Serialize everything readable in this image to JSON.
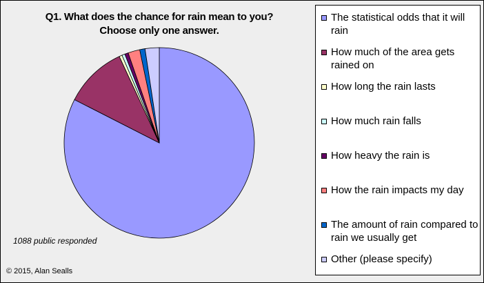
{
  "chart_data": {
    "type": "pie",
    "title": "Q1. What does the chance for rain mean to you?",
    "subtitle": "Choose only one answer.",
    "note": "1088 public responded",
    "copyright": "© 2015, Alan Sealls",
    "legend_position": "right",
    "slices": [
      {
        "label": "The statistical odds that it will rain",
        "value": 82.5,
        "color": "#9999ff"
      },
      {
        "label": "How much of the area gets rained on",
        "value": 10.6,
        "color": "#993366"
      },
      {
        "label": "How long the rain lasts",
        "value": 0.5,
        "color": "#ffffcc"
      },
      {
        "label": "How much rain falls",
        "value": 0.5,
        "color": "#ccffff"
      },
      {
        "label": "How heavy the rain is",
        "value": 0.6,
        "color": "#660066"
      },
      {
        "label": "How the rain impacts my day",
        "value": 2.0,
        "color": "#ff8080"
      },
      {
        "label": "The amount of rain compared to rain we usually get",
        "value": 0.9,
        "color": "#0066cc"
      },
      {
        "label": "Other (please specify)",
        "value": 2.4,
        "color": "#ccccff"
      }
    ]
  }
}
